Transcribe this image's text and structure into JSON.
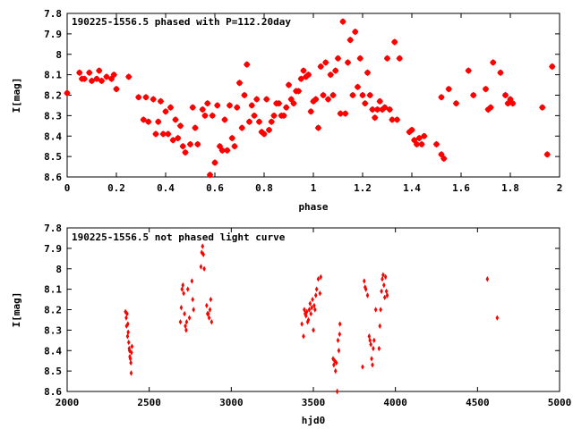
{
  "chart_data": [
    {
      "type": "scatter",
      "title": "190225-1556.5 phased with P=112.20day",
      "xlabel": "phase",
      "ylabel": "I[mag]",
      "xlim": [
        0,
        2
      ],
      "ylim": [
        8.6,
        7.8
      ],
      "y_inverted": true,
      "grid": false,
      "legend": "none",
      "color": "#ff0000",
      "marker": "star",
      "x_ticks": [
        "0",
        "0.2",
        "0.4",
        "0.6",
        "0.8",
        "1",
        "1.2",
        "1.4",
        "1.6",
        "1.8",
        "2"
      ],
      "y_ticks": [
        "7.8",
        "7.9",
        "8",
        "8.1",
        "8.2",
        "8.3",
        "8.4",
        "8.5",
        "8.6"
      ],
      "points": [
        [
          0.0,
          8.19
        ],
        [
          0.05,
          8.09
        ],
        [
          0.06,
          8.12
        ],
        [
          0.07,
          8.12
        ],
        [
          0.09,
          8.09
        ],
        [
          0.1,
          8.13
        ],
        [
          0.12,
          8.12
        ],
        [
          0.13,
          8.08
        ],
        [
          0.14,
          8.13
        ],
        [
          0.16,
          8.11
        ],
        [
          0.18,
          8.12
        ],
        [
          0.19,
          8.1
        ],
        [
          0.2,
          8.17
        ],
        [
          0.25,
          8.11
        ],
        [
          0.29,
          8.21
        ],
        [
          0.31,
          8.32
        ],
        [
          0.32,
          8.21
        ],
        [
          0.33,
          8.33
        ],
        [
          0.35,
          8.22
        ],
        [
          0.36,
          8.39
        ],
        [
          0.37,
          8.33
        ],
        [
          0.38,
          8.23
        ],
        [
          0.39,
          8.39
        ],
        [
          0.4,
          8.28
        ],
        [
          0.41,
          8.39
        ],
        [
          0.42,
          8.26
        ],
        [
          0.43,
          8.42
        ],
        [
          0.44,
          8.32
        ],
        [
          0.45,
          8.41
        ],
        [
          0.46,
          8.35
        ],
        [
          0.47,
          8.45
        ],
        [
          0.48,
          8.48
        ],
        [
          0.5,
          8.44
        ],
        [
          0.51,
          8.26
        ],
        [
          0.52,
          8.36
        ],
        [
          0.53,
          8.44
        ],
        [
          0.55,
          8.27
        ],
        [
          0.56,
          8.3
        ],
        [
          0.57,
          8.24
        ],
        [
          0.58,
          8.59
        ],
        [
          0.59,
          8.3
        ],
        [
          0.6,
          8.53
        ],
        [
          0.61,
          8.25
        ],
        [
          0.62,
          8.45
        ],
        [
          0.63,
          8.47
        ],
        [
          0.64,
          8.32
        ],
        [
          0.65,
          8.47
        ],
        [
          0.66,
          8.25
        ],
        [
          0.67,
          8.41
        ],
        [
          0.68,
          8.45
        ],
        [
          0.69,
          8.26
        ],
        [
          0.7,
          8.14
        ],
        [
          0.71,
          8.36
        ],
        [
          0.72,
          8.2
        ],
        [
          0.73,
          8.05
        ],
        [
          0.74,
          8.33
        ],
        [
          0.75,
          8.25
        ],
        [
          0.76,
          8.3
        ],
        [
          0.77,
          8.22
        ],
        [
          0.78,
          8.33
        ],
        [
          0.79,
          8.38
        ],
        [
          0.8,
          8.39
        ],
        [
          0.81,
          8.22
        ],
        [
          0.82,
          8.37
        ],
        [
          0.83,
          8.33
        ],
        [
          0.84,
          8.3
        ],
        [
          0.85,
          8.24
        ],
        [
          0.86,
          8.24
        ],
        [
          0.87,
          8.3
        ],
        [
          0.88,
          8.3
        ],
        [
          0.89,
          8.26
        ],
        [
          0.9,
          8.15
        ],
        [
          0.91,
          8.22
        ],
        [
          0.92,
          8.24
        ],
        [
          0.93,
          8.18
        ],
        [
          0.94,
          8.18
        ],
        [
          0.95,
          8.12
        ],
        [
          0.96,
          8.08
        ],
        [
          0.97,
          8.11
        ],
        [
          0.98,
          8.1
        ],
        [
          0.99,
          8.28
        ],
        [
          1.0,
          8.23
        ],
        [
          1.01,
          8.22
        ],
        [
          1.02,
          8.36
        ],
        [
          1.03,
          8.06
        ],
        [
          1.04,
          8.2
        ],
        [
          1.05,
          8.04
        ],
        [
          1.06,
          8.22
        ],
        [
          1.07,
          8.1
        ],
        [
          1.08,
          8.2
        ],
        [
          1.09,
          8.08
        ],
        [
          1.1,
          8.02
        ],
        [
          1.11,
          8.29
        ],
        [
          1.12,
          7.84
        ],
        [
          1.13,
          8.29
        ],
        [
          1.14,
          8.04
        ],
        [
          1.15,
          7.93
        ],
        [
          1.16,
          8.2
        ],
        [
          1.17,
          7.89
        ],
        [
          1.18,
          8.16
        ],
        [
          1.19,
          8.02
        ],
        [
          1.2,
          8.2
        ],
        [
          1.21,
          8.24
        ],
        [
          1.22,
          8.09
        ],
        [
          1.23,
          8.2
        ],
        [
          1.24,
          8.27
        ],
        [
          1.25,
          8.31
        ],
        [
          1.26,
          8.27
        ],
        [
          1.27,
          8.23
        ],
        [
          1.28,
          8.27
        ],
        [
          1.29,
          8.26
        ],
        [
          1.3,
          8.02
        ],
        [
          1.31,
          8.27
        ],
        [
          1.32,
          8.32
        ],
        [
          1.33,
          7.94
        ],
        [
          1.34,
          8.32
        ],
        [
          1.35,
          8.02
        ],
        [
          1.39,
          8.38
        ],
        [
          1.4,
          8.37
        ],
        [
          1.41,
          8.42
        ],
        [
          1.42,
          8.44
        ],
        [
          1.43,
          8.41
        ],
        [
          1.44,
          8.44
        ],
        [
          1.45,
          8.4
        ],
        [
          1.5,
          8.44
        ],
        [
          1.52,
          8.49
        ],
        [
          1.53,
          8.51
        ],
        [
          1.52,
          8.21
        ],
        [
          1.55,
          8.17
        ],
        [
          1.58,
          8.24
        ],
        [
          1.63,
          8.08
        ],
        [
          1.65,
          8.2
        ],
        [
          1.7,
          8.17
        ],
        [
          1.71,
          8.27
        ],
        [
          1.72,
          8.26
        ],
        [
          1.73,
          8.04
        ],
        [
          1.76,
          8.09
        ],
        [
          1.78,
          8.2
        ],
        [
          1.79,
          8.24
        ],
        [
          1.8,
          8.22
        ],
        [
          1.81,
          8.24
        ],
        [
          1.93,
          8.26
        ],
        [
          1.95,
          8.49
        ],
        [
          1.97,
          8.06
        ]
      ]
    },
    {
      "type": "scatter",
      "title": "190225-1556.5 not phased light curve",
      "xlabel": "hjd0",
      "ylabel": "I[mag]",
      "xlim": [
        2000,
        5000
      ],
      "ylim": [
        8.6,
        7.8
      ],
      "y_inverted": true,
      "grid": false,
      "legend": "none",
      "color": "#ff0000",
      "marker": "diamond",
      "x_ticks": [
        "2000",
        "2500",
        "3000",
        "3500",
        "4000",
        "4500",
        "5000"
      ],
      "y_ticks": [
        "7.8",
        "7.9",
        "8",
        "8.1",
        "8.2",
        "8.3",
        "8.4",
        "8.5",
        "8.6"
      ],
      "points": [
        [
          2355,
          8.21
        ],
        [
          2360,
          8.24
        ],
        [
          2362,
          8.28
        ],
        [
          2365,
          8.22
        ],
        [
          2368,
          8.33
        ],
        [
          2370,
          8.27
        ],
        [
          2372,
          8.31
        ],
        [
          2375,
          8.36
        ],
        [
          2378,
          8.39
        ],
        [
          2380,
          8.4
        ],
        [
          2382,
          8.43
        ],
        [
          2385,
          8.44
        ],
        [
          2388,
          8.46
        ],
        [
          2390,
          8.51
        ],
        [
          2392,
          8.41
        ],
        [
          2395,
          8.38
        ],
        [
          2690,
          8.26
        ],
        [
          2695,
          8.19
        ],
        [
          2700,
          8.1
        ],
        [
          2705,
          8.08
        ],
        [
          2710,
          8.12
        ],
        [
          2715,
          8.22
        ],
        [
          2720,
          8.28
        ],
        [
          2725,
          8.3
        ],
        [
          2728,
          8.26
        ],
        [
          2735,
          8.1
        ],
        [
          2745,
          8.24
        ],
        [
          2760,
          8.06
        ],
        [
          2765,
          8.15
        ],
        [
          2770,
          8.2
        ],
        [
          2815,
          7.99
        ],
        [
          2820,
          7.92
        ],
        [
          2825,
          7.89
        ],
        [
          2830,
          7.93
        ],
        [
          2835,
          8.0
        ],
        [
          2850,
          8.18
        ],
        [
          2855,
          8.22
        ],
        [
          2860,
          8.22
        ],
        [
          2865,
          8.24
        ],
        [
          2870,
          8.2
        ],
        [
          2875,
          8.15
        ],
        [
          2880,
          8.26
        ],
        [
          3430,
          8.27
        ],
        [
          3440,
          8.33
        ],
        [
          3445,
          8.2
        ],
        [
          3450,
          8.22
        ],
        [
          3455,
          8.23
        ],
        [
          3460,
          8.21
        ],
        [
          3465,
          8.26
        ],
        [
          3470,
          8.25
        ],
        [
          3475,
          8.2
        ],
        [
          3480,
          8.17
        ],
        [
          3485,
          8.22
        ],
        [
          3490,
          8.19
        ],
        [
          3495,
          8.15
        ],
        [
          3500,
          8.3
        ],
        [
          3505,
          8.18
        ],
        [
          3510,
          8.2
        ],
        [
          3515,
          8.13
        ],
        [
          3520,
          8.1
        ],
        [
          3530,
          8.05
        ],
        [
          3540,
          8.12
        ],
        [
          3545,
          8.04
        ],
        [
          3620,
          8.44
        ],
        [
          3625,
          8.47
        ],
        [
          3630,
          8.45
        ],
        [
          3635,
          8.5
        ],
        [
          3640,
          8.46
        ],
        [
          3645,
          8.6
        ],
        [
          3650,
          8.35
        ],
        [
          3655,
          8.4
        ],
        [
          3660,
          8.32
        ],
        [
          3662,
          8.27
        ],
        [
          3800,
          8.48
        ],
        [
          3810,
          8.06
        ],
        [
          3815,
          8.09
        ],
        [
          3820,
          8.1
        ],
        [
          3830,
          8.13
        ],
        [
          3840,
          8.33
        ],
        [
          3845,
          8.35
        ],
        [
          3850,
          8.37
        ],
        [
          3855,
          8.44
        ],
        [
          3860,
          8.47
        ],
        [
          3865,
          8.39
        ],
        [
          3870,
          8.35
        ],
        [
          3880,
          8.2
        ],
        [
          3900,
          8.39
        ],
        [
          3905,
          8.28
        ],
        [
          3910,
          8.2
        ],
        [
          3915,
          8.11
        ],
        [
          3920,
          8.05
        ],
        [
          3925,
          8.03
        ],
        [
          3930,
          8.08
        ],
        [
          3935,
          8.14
        ],
        [
          3940,
          8.04
        ],
        [
          3945,
          8.11
        ],
        [
          3950,
          8.13
        ],
        [
          4560,
          8.05
        ],
        [
          4620,
          8.24
        ]
      ]
    }
  ]
}
